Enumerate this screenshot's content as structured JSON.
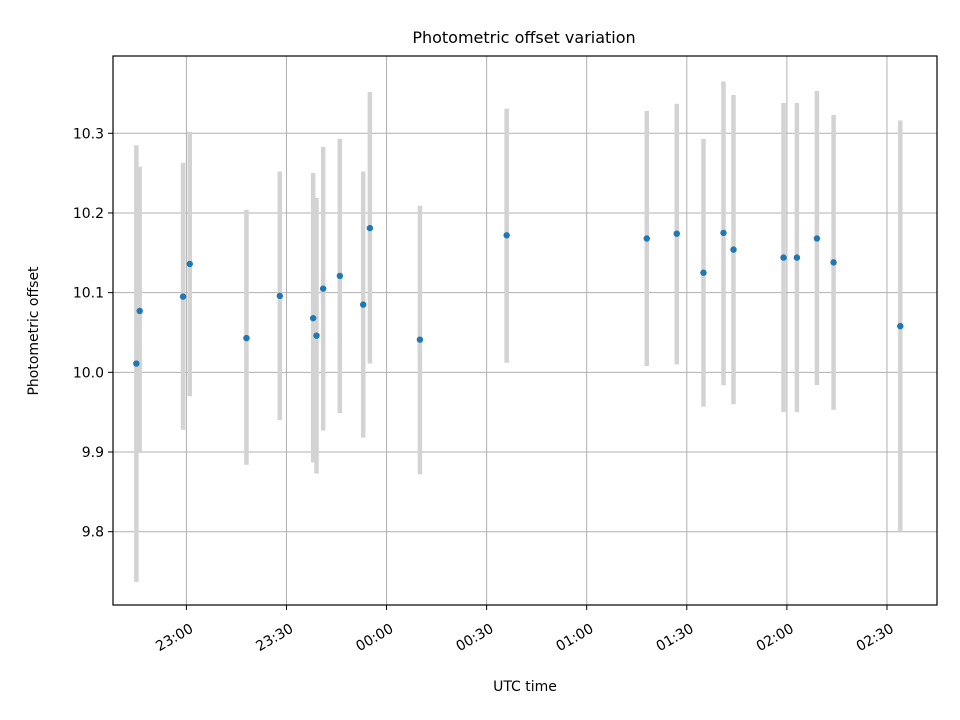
{
  "chart_data": {
    "type": "scatter",
    "title": "Photometric offset variation",
    "xlabel": "UTC time",
    "ylabel": "Photometric offset",
    "x_ticks": [
      "23:00",
      "23:30",
      "00:00",
      "00:30",
      "01:00",
      "01:30",
      "02:00",
      "02:30"
    ],
    "y_ticks": [
      "9.8",
      "9.9",
      "10.0",
      "10.1",
      "10.2",
      "10.3"
    ],
    "x_start_time": "22:38",
    "x_end_time": "02:45",
    "ylim": [
      9.708,
      10.397
    ],
    "grid": true,
    "colors": {
      "point": "#1f77b4",
      "errorbar": "#d3d3d3",
      "grid": "#b0b0b0"
    },
    "points": [
      {
        "time": "22:45",
        "y": 10.011,
        "err_low": 9.737,
        "err_high": 10.285
      },
      {
        "time": "22:46",
        "y": 10.077,
        "err_low": 9.9,
        "err_high": 10.258
      },
      {
        "time": "22:59",
        "y": 10.095,
        "err_low": 9.928,
        "err_high": 10.263
      },
      {
        "time": "23:01",
        "y": 10.136,
        "err_low": 9.97,
        "err_high": 10.302
      },
      {
        "time": "23:18",
        "y": 10.043,
        "err_low": 9.884,
        "err_high": 10.204
      },
      {
        "time": "23:28",
        "y": 10.096,
        "err_low": 9.94,
        "err_high": 10.252
      },
      {
        "time": "23:38",
        "y": 10.068,
        "err_low": 9.887,
        "err_high": 10.25
      },
      {
        "time": "23:39",
        "y": 10.046,
        "err_low": 9.873,
        "err_high": 10.219
      },
      {
        "time": "23:41",
        "y": 10.105,
        "err_low": 9.927,
        "err_high": 10.283
      },
      {
        "time": "23:46",
        "y": 10.121,
        "err_low": 9.949,
        "err_high": 10.293
      },
      {
        "time": "23:53",
        "y": 10.085,
        "err_low": 9.918,
        "err_high": 10.252
      },
      {
        "time": "23:55",
        "y": 10.181,
        "err_low": 10.011,
        "err_high": 10.352
      },
      {
        "time": "00:10",
        "y": 10.041,
        "err_low": 9.872,
        "err_high": 10.209
      },
      {
        "time": "00:36",
        "y": 10.172,
        "err_low": 10.012,
        "err_high": 10.331
      },
      {
        "time": "01:18",
        "y": 10.168,
        "err_low": 10.008,
        "err_high": 10.328
      },
      {
        "time": "01:27",
        "y": 10.174,
        "err_low": 10.01,
        "err_high": 10.337
      },
      {
        "time": "01:35",
        "y": 10.125,
        "err_low": 9.957,
        "err_high": 10.293
      },
      {
        "time": "01:41",
        "y": 10.175,
        "err_low": 9.984,
        "err_high": 10.365
      },
      {
        "time": "01:44",
        "y": 10.154,
        "err_low": 9.96,
        "err_high": 10.348
      },
      {
        "time": "01:59",
        "y": 10.144,
        "err_low": 9.95,
        "err_high": 10.338
      },
      {
        "time": "02:03",
        "y": 10.144,
        "err_low": 9.95,
        "err_high": 10.338
      },
      {
        "time": "02:09",
        "y": 10.168,
        "err_low": 9.984,
        "err_high": 10.353
      },
      {
        "time": "02:14",
        "y": 10.138,
        "err_low": 9.953,
        "err_high": 10.323
      },
      {
        "time": "02:34",
        "y": 10.058,
        "err_low": 9.8,
        "err_high": 10.316
      }
    ]
  }
}
